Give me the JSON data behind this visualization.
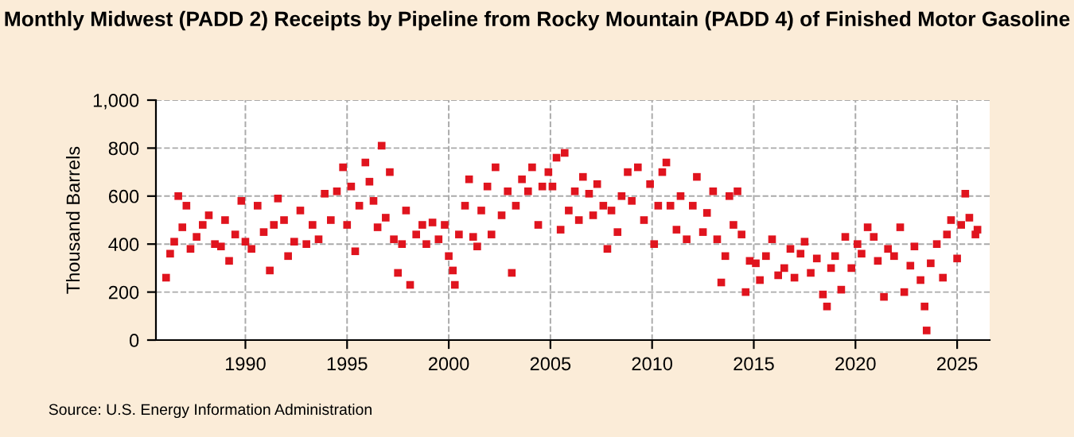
{
  "chart_data": {
    "type": "scatter",
    "title": "Monthly Midwest (PADD 2) Receipts by Pipeline from Rocky Mountain (PADD 4) of Finished Motor Gasoline",
    "ylabel": "Thousand Barrels",
    "annotations": [
      "Source: U.S. Energy Information Administration"
    ],
    "marker": "square",
    "grid": true,
    "xlim": [
      1985.6,
      2026.6
    ],
    "xticks": [
      1990,
      1995,
      2000,
      2005,
      2010,
      2015,
      2020,
      2025
    ],
    "ylim": [
      0,
      1000
    ],
    "yticks": [
      {
        "value": 0,
        "label": "0"
      },
      {
        "value": 200,
        "label": "200"
      },
      {
        "value": 400,
        "label": "400"
      },
      {
        "value": 600,
        "label": "600"
      },
      {
        "value": 800,
        "label": "800"
      },
      {
        "value": 1000,
        "label": "1,000"
      }
    ],
    "series": [
      {
        "color": "#e0141e",
        "x": [
          1986.1,
          1986.3,
          1986.5,
          1986.7,
          1986.9,
          1987.1,
          1987.3,
          1987.6,
          1987.9,
          1988.2,
          1988.5,
          1988.8,
          1989.0,
          1989.2,
          1989.5,
          1989.8,
          1990.0,
          1990.3,
          1990.6,
          1990.9,
          1991.2,
          1991.4,
          1991.6,
          1991.9,
          1992.1,
          1992.4,
          1992.7,
          1993.0,
          1993.3,
          1993.6,
          1993.9,
          1994.2,
          1994.5,
          1994.8,
          1995.0,
          1995.2,
          1995.4,
          1995.6,
          1995.9,
          1996.1,
          1996.3,
          1996.5,
          1996.7,
          1996.9,
          1997.1,
          1997.3,
          1997.5,
          1997.7,
          1997.9,
          1998.1,
          1998.4,
          1998.7,
          1998.9,
          1999.2,
          1999.5,
          1999.8,
          2000.0,
          2000.2,
          2000.3,
          2000.5,
          2000.8,
          2001.0,
          2001.2,
          2001.4,
          2001.6,
          2001.9,
          2002.1,
          2002.3,
          2002.6,
          2002.9,
          2003.1,
          2003.3,
          2003.6,
          2003.9,
          2004.1,
          2004.4,
          2004.6,
          2004.9,
          2005.1,
          2005.3,
          2005.5,
          2005.7,
          2005.9,
          2006.2,
          2006.4,
          2006.6,
          2006.9,
          2007.1,
          2007.3,
          2007.6,
          2007.8,
          2008.0,
          2008.3,
          2008.5,
          2008.8,
          2009.0,
          2009.3,
          2009.6,
          2009.9,
          2010.1,
          2010.3,
          2010.5,
          2010.7,
          2010.9,
          2011.2,
          2011.4,
          2011.7,
          2012.0,
          2012.2,
          2012.5,
          2012.7,
          2013.0,
          2013.2,
          2013.4,
          2013.6,
          2013.8,
          2014.0,
          2014.2,
          2014.4,
          2014.6,
          2014.8,
          2015.1,
          2015.3,
          2015.6,
          2015.9,
          2016.2,
          2016.5,
          2016.8,
          2017.0,
          2017.3,
          2017.5,
          2017.8,
          2018.1,
          2018.4,
          2018.6,
          2018.8,
          2019.0,
          2019.3,
          2019.5,
          2019.8,
          2020.1,
          2020.3,
          2020.6,
          2020.9,
          2021.1,
          2021.4,
          2021.6,
          2021.9,
          2022.2,
          2022.4,
          2022.7,
          2022.9,
          2023.2,
          2023.4,
          2023.5,
          2023.7,
          2024.0,
          2024.3,
          2024.5,
          2024.7,
          2025.0,
          2025.2,
          2025.4,
          2025.6,
          2025.9,
          2026.0
        ],
        "values": [
          260,
          360,
          410,
          600,
          470,
          560,
          380,
          430,
          480,
          520,
          400,
          390,
          500,
          330,
          440,
          580,
          410,
          380,
          560,
          450,
          290,
          480,
          590,
          500,
          350,
          410,
          540,
          400,
          480,
          420,
          610,
          500,
          620,
          720,
          480,
          640,
          370,
          560,
          740,
          660,
          580,
          470,
          810,
          510,
          700,
          420,
          280,
          400,
          540,
          230,
          440,
          480,
          400,
          490,
          420,
          480,
          350,
          290,
          230,
          440,
          560,
          670,
          430,
          390,
          540,
          640,
          440,
          720,
          520,
          620,
          280,
          560,
          670,
          620,
          720,
          480,
          640,
          700,
          640,
          760,
          460,
          780,
          540,
          620,
          500,
          680,
          610,
          520,
          650,
          560,
          380,
          540,
          450,
          600,
          700,
          580,
          720,
          500,
          650,
          400,
          560,
          700,
          740,
          560,
          460,
          600,
          420,
          560,
          680,
          450,
          530,
          620,
          420,
          240,
          350,
          600,
          480,
          620,
          440,
          200,
          330,
          320,
          250,
          350,
          420,
          270,
          300,
          380,
          260,
          360,
          410,
          280,
          340,
          190,
          140,
          300,
          350,
          210,
          430,
          300,
          400,
          360,
          470,
          430,
          330,
          180,
          380,
          350,
          470,
          200,
          310,
          390,
          250,
          140,
          40,
          320,
          400,
          260,
          440,
          500,
          340,
          480,
          610,
          510,
          440,
          460
        ]
      }
    ]
  }
}
